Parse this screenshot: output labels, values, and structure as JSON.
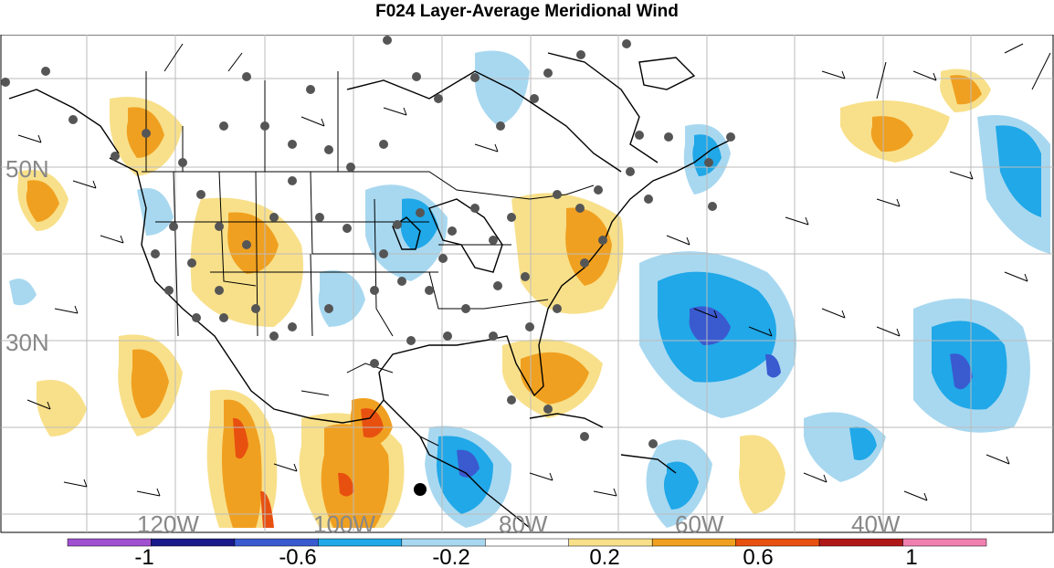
{
  "title": "F024 Layer-Average Meridional Wind",
  "map": {
    "lat_labels": [
      "50N",
      "30N"
    ],
    "lon_labels": [
      "120W",
      "100W",
      "80W",
      "60W",
      "40W"
    ],
    "colors": {
      "ocean_bg": "#ffffff",
      "coast": "#000000",
      "grid": "#bbbbbb",
      "station": "#555555"
    }
  },
  "colorbar": {
    "labels": [
      "-1",
      "-0.6",
      "-0.2",
      "0.2",
      "0.6",
      "1"
    ],
    "colors": [
      "#a050d0",
      "#1a1a8a",
      "#3a5ad0",
      "#20a8e8",
      "#a8d8f0",
      "#ffffff",
      "#f8e08a",
      "#f0a020",
      "#e85010",
      "#b01818",
      "#f080b0"
    ]
  }
}
